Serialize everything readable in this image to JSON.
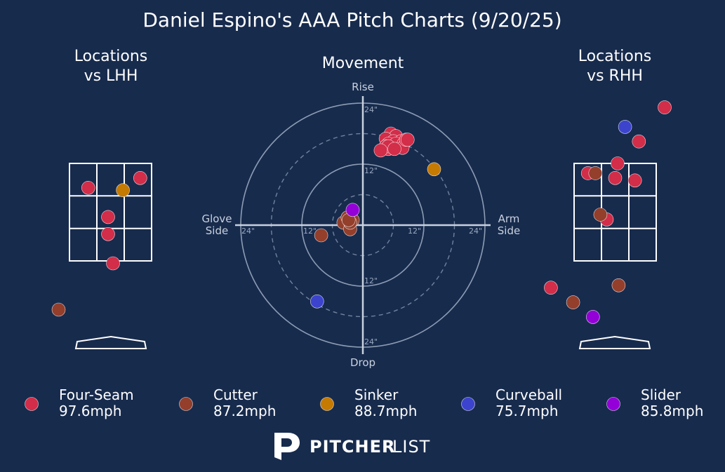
{
  "title": "Daniel Espino's AAA Pitch Charts (9/20/25)",
  "panels": {
    "lhh_title": [
      "Locations",
      "vs LHH"
    ],
    "movement_title": "Movement",
    "rhh_title": [
      "Locations",
      "vs RHH"
    ]
  },
  "movement_axes": {
    "rise": "Rise",
    "drop": "Drop",
    "glove_side": [
      "Glove",
      "Side"
    ],
    "arm_side": [
      "Arm",
      "Side"
    ],
    "ring_labels": [
      "24\"",
      "12\"",
      "12\"",
      "24\"",
      "24\"",
      "12\"",
      "12\"",
      "24\""
    ]
  },
  "colors": {
    "background": "#172b4d",
    "Four-Seam": "#d22d49",
    "Cutter": "#933f2c",
    "Sinker": "#c57a02",
    "Curveball": "#3c44cd",
    "Slider": "#9300d8"
  },
  "legend": [
    {
      "pitch": "Four-Seam",
      "velo": "97.6mph"
    },
    {
      "pitch": "Cutter",
      "velo": "87.2mph"
    },
    {
      "pitch": "Sinker",
      "velo": "88.7mph"
    },
    {
      "pitch": "Curveball",
      "velo": "75.7mph"
    },
    {
      "pitch": "Slider",
      "velo": "85.8mph"
    }
  ],
  "logo": {
    "bold": "PITCHER",
    "light": "LIST"
  },
  "chart_data": [
    {
      "type": "scatter",
      "title": "Locations vs LHH",
      "x_unit": "ft (catcher view, plate_x)",
      "y_unit": "ft (plate_z)",
      "xlim": [
        -2.0,
        2.0
      ],
      "ylim": [
        0.0,
        5.5
      ],
      "strike_zone": {
        "x": [
          -0.83,
          0.83
        ],
        "z": [
          1.5,
          3.5
        ]
      },
      "points": [
        {
          "pitch": "Four-Seam",
          "x": -0.45,
          "z": 3.0
        },
        {
          "pitch": "Four-Seam",
          "x": 0.6,
          "z": 3.2
        },
        {
          "pitch": "Four-Seam",
          "x": -0.05,
          "z": 2.4
        },
        {
          "pitch": "Four-Seam",
          "x": -0.05,
          "z": 2.05
        },
        {
          "pitch": "Four-Seam",
          "x": 0.05,
          "z": 1.45
        },
        {
          "pitch": "Sinker",
          "x": 0.25,
          "z": 2.95
        },
        {
          "pitch": "Cutter",
          "x": -1.05,
          "z": 0.5
        }
      ]
    },
    {
      "type": "scatter",
      "title": "Movement",
      "x_unit": "inches (arm side +)",
      "y_unit": "inches (rise +)",
      "xlim": [
        -24,
        24
      ],
      "ylim": [
        -24,
        24
      ],
      "rings": [
        6,
        12,
        18,
        24
      ],
      "points": [
        {
          "pitch": "Four-Seam",
          "x": 5.5,
          "y": 18.0
        },
        {
          "pitch": "Four-Seam",
          "x": 6.5,
          "y": 17.5
        },
        {
          "pitch": "Four-Seam",
          "x": 4.5,
          "y": 17.0
        },
        {
          "pitch": "Four-Seam",
          "x": 6.0,
          "y": 16.5
        },
        {
          "pitch": "Four-Seam",
          "x": 5.0,
          "y": 16.0
        },
        {
          "pitch": "Four-Seam",
          "x": 7.5,
          "y": 16.5
        },
        {
          "pitch": "Four-Seam",
          "x": 6.5,
          "y": 16.0
        },
        {
          "pitch": "Four-Seam",
          "x": 4.5,
          "y": 15.5
        },
        {
          "pitch": "Four-Seam",
          "x": 8.0,
          "y": 16.0
        },
        {
          "pitch": "Four-Seam",
          "x": 5.0,
          "y": 15.0
        },
        {
          "pitch": "Four-Seam",
          "x": 7.8,
          "y": 15.2
        },
        {
          "pitch": "Four-Seam",
          "x": 5.0,
          "y": 15.5
        },
        {
          "pitch": "Four-Seam",
          "x": 8.5,
          "y": 16.8
        },
        {
          "pitch": "Four-Seam",
          "x": 3.5,
          "y": 14.7
        },
        {
          "pitch": "Four-Seam",
          "x": 6.2,
          "y": 15.0
        },
        {
          "pitch": "Four-Seam",
          "x": 8.8,
          "y": 16.8
        },
        {
          "pitch": "Sinker",
          "x": 14.0,
          "y": 11.0
        },
        {
          "pitch": "Cutter",
          "x": -2.8,
          "y": 1.0
        },
        {
          "pitch": "Cutter",
          "x": -3.8,
          "y": 0.5
        },
        {
          "pitch": "Cutter",
          "x": -2.5,
          "y": -0.8
        },
        {
          "pitch": "Cutter",
          "x": -2.0,
          "y": 1.0
        },
        {
          "pitch": "Cutter",
          "x": -8.2,
          "y": -2.0
        },
        {
          "pitch": "Cutter",
          "x": -3.0,
          "y": 1.5
        },
        {
          "pitch": "Cutter",
          "x": -2.5,
          "y": 0.5
        },
        {
          "pitch": "Cutter",
          "x": -2.8,
          "y": 1.0
        },
        {
          "pitch": "Slider",
          "x": -2.0,
          "y": 3.0
        },
        {
          "pitch": "Curveball",
          "x": -9.0,
          "y": -15.0
        }
      ]
    },
    {
      "type": "scatter",
      "title": "Locations vs RHH",
      "x_unit": "ft (catcher view, plate_x)",
      "y_unit": "ft (plate_z)",
      "xlim": [
        -2.0,
        2.0
      ],
      "ylim": [
        0.0,
        5.5
      ],
      "strike_zone": {
        "x": [
          -0.83,
          0.83
        ],
        "z": [
          1.5,
          3.5
        ]
      },
      "points": [
        {
          "pitch": "Four-Seam",
          "x": 1.0,
          "z": 4.65
        },
        {
          "pitch": "Four-Seam",
          "x": 0.48,
          "z": 3.95
        },
        {
          "pitch": "Four-Seam",
          "x": 0.05,
          "z": 3.5
        },
        {
          "pitch": "Four-Seam",
          "x": -0.55,
          "z": 3.3
        },
        {
          "pitch": "Four-Seam",
          "x": 0.0,
          "z": 3.2
        },
        {
          "pitch": "Four-Seam",
          "x": 0.4,
          "z": 3.15
        },
        {
          "pitch": "Four-Seam",
          "x": -0.17,
          "z": 2.35
        },
        {
          "pitch": "Four-Seam",
          "x": -1.3,
          "z": 0.95
        },
        {
          "pitch": "Cutter",
          "x": -0.4,
          "z": 3.3
        },
        {
          "pitch": "Cutter",
          "x": -0.3,
          "z": 2.45
        },
        {
          "pitch": "Cutter",
          "x": 0.07,
          "z": 1.0
        },
        {
          "pitch": "Cutter",
          "x": -0.85,
          "z": 0.65
        },
        {
          "pitch": "Curveball",
          "x": 0.2,
          "z": 4.25
        },
        {
          "pitch": "Slider",
          "x": -0.45,
          "z": 0.35
        }
      ]
    }
  ]
}
